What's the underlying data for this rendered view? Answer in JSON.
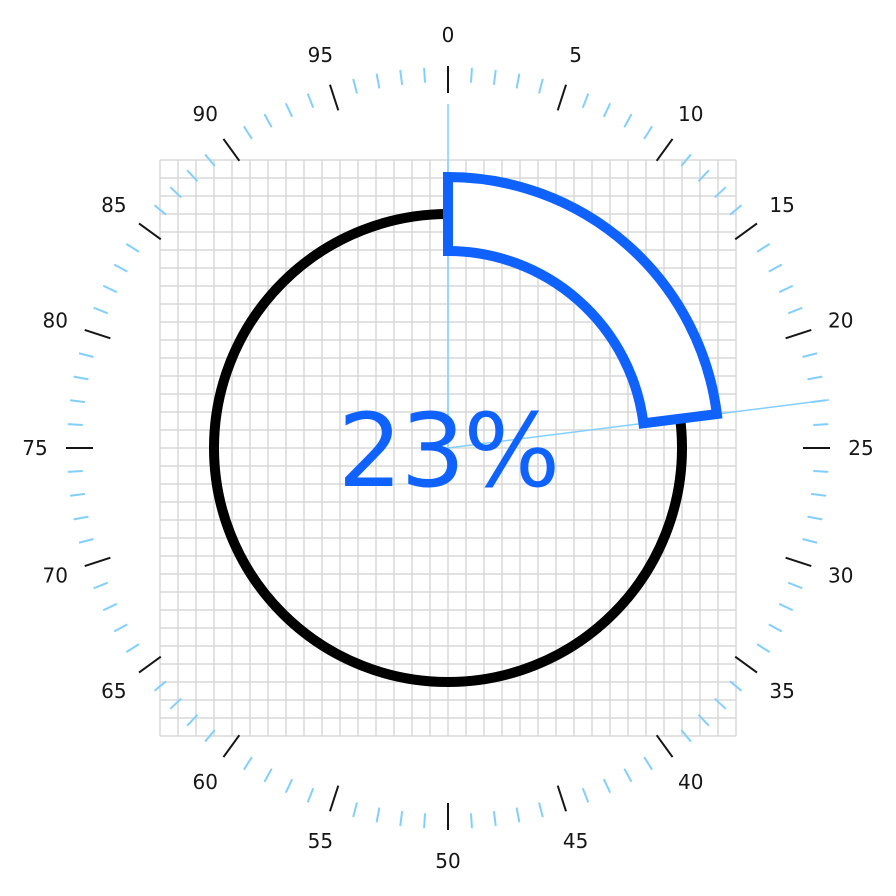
{
  "gauge": {
    "value_percent": 23,
    "value_label": "23%",
    "scale_min": 0,
    "scale_max": 100,
    "major_tick_step": 5,
    "minor_tick_step": 1,
    "tick_labels": [
      "0",
      "5",
      "10",
      "15",
      "20",
      "25",
      "30",
      "35",
      "40",
      "45",
      "50",
      "55",
      "60",
      "65",
      "70",
      "75",
      "80",
      "85",
      "90",
      "95"
    ]
  },
  "colors": {
    "accent": "#0f62fe",
    "ring": "#000000",
    "minor_tick": "#82cfff",
    "major_tick": "#161616",
    "grid": "#d8d8d8",
    "guide_line": "#82cfff"
  }
}
